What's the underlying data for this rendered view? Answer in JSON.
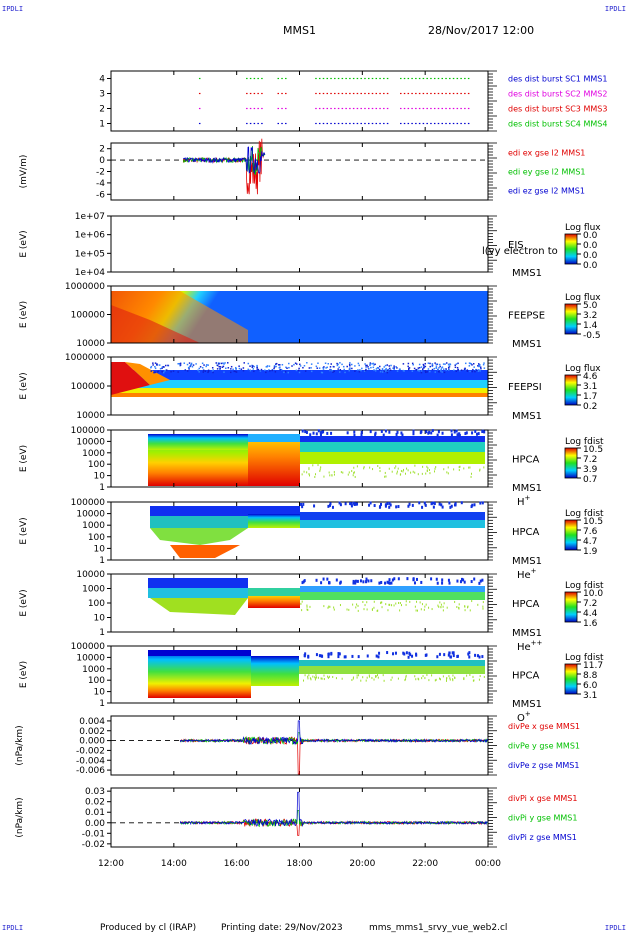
{
  "header": {
    "corner_tl": "IPDLI",
    "corner_tr": "IPDLI",
    "corner_bl": "IPDLI",
    "corner_br": "IPDLI",
    "mission": "MMS1",
    "datetime": "28/Nov/2017 12:00"
  },
  "footer": {
    "produced_by": "Produced by cl (IRAP)",
    "printing_date": "Printing date: 29/Nov/2023",
    "filename": "mms_mms1_srvy_vue_web2.cl"
  },
  "colors": {
    "red": "#e00000",
    "green": "#00c000",
    "blue": "#0000d0",
    "magenta": "#e000e0",
    "axis": "#000000"
  },
  "chart_data": [
    {
      "id": "panel1",
      "type": "scatter",
      "ylim": [
        0.5,
        4.5
      ],
      "yticks": [
        "1",
        "2",
        "3",
        "4"
      ],
      "legend": [
        "des dist burst SC1 MMS1",
        "des dist burst SC2 MMS2",
        "des dist burst SC3 MMS3",
        "des dist burst SC4 MMS4"
      ],
      "legend_colors": [
        "#0000d0",
        "#e000e0",
        "#e00000",
        "#00c000"
      ],
      "series": [
        {
          "name": "des dist burst SC1 MMS1",
          "level": 1,
          "segments": [
            [
              14.8,
              14.85
            ],
            [
              16.3,
              16.9
            ],
            [
              17.3,
              17.6
            ],
            [
              18.5,
              20.9
            ],
            [
              21.2,
              23.4
            ]
          ]
        },
        {
          "name": "des dist burst SC2 MMS2",
          "level": 2,
          "segments": [
            [
              14.8,
              14.85
            ],
            [
              16.3,
              16.9
            ],
            [
              17.3,
              17.6
            ],
            [
              18.5,
              20.9
            ],
            [
              21.2,
              23.4
            ]
          ]
        },
        {
          "name": "des dist burst SC3 MMS3",
          "level": 3,
          "segments": [
            [
              14.8,
              14.85
            ],
            [
              16.3,
              16.9
            ],
            [
              17.3,
              17.6
            ],
            [
              18.5,
              20.9
            ],
            [
              21.2,
              23.4
            ]
          ]
        },
        {
          "name": "des dist burst SC4 MMS4",
          "level": 4,
          "segments": [
            [
              14.8,
              14.85
            ],
            [
              16.3,
              16.9
            ],
            [
              17.3,
              17.6
            ],
            [
              18.5,
              20.9
            ],
            [
              21.2,
              23.4
            ]
          ]
        }
      ]
    },
    {
      "id": "panel2",
      "type": "line",
      "ylabel": "(mV/m)",
      "ylim": [
        -7,
        3
      ],
      "yticks": [
        "2",
        "0",
        "-2",
        "-4",
        "-6"
      ],
      "ytick_values": [
        2,
        0,
        -2,
        -4,
        -6
      ],
      "legend": [
        "edi ex gse l2 MMS1",
        "edi ey gse l2 MMS1",
        "edi ez gse l2 MMS1"
      ],
      "legend_colors": [
        "#e00000",
        "#00c000",
        "#0000d0"
      ],
      "data_range": [
        14.3,
        16.9
      ]
    },
    {
      "id": "panel3",
      "type": "heatmap",
      "ylabel": "E (eV)",
      "yticks": [
        "1e+07",
        "1e+06",
        "1e+05",
        "1e+04"
      ],
      "label_main": "EIS",
      "label_sub": "MMS1",
      "label_overlap": "l(vy electron to",
      "colorbar_title": "Log flux",
      "colorbar_ticks": [
        "0.0",
        "0.0",
        "0.0",
        "0.0"
      ]
    },
    {
      "id": "panel4",
      "type": "heatmap",
      "ylabel": "E (eV)",
      "yticks": [
        "1000000",
        "100000",
        "10000"
      ],
      "label_main": "FEEPSE",
      "label_sub": "MMS1",
      "colorbar_title": "Log flux",
      "colorbar_ticks": [
        "5.0",
        "3.2",
        "1.4",
        "-0.5"
      ]
    },
    {
      "id": "panel5",
      "type": "heatmap",
      "ylabel": "E (eV)",
      "yticks": [
        "1000000",
        "100000",
        "10000"
      ],
      "label_main": "FEEPSI",
      "label_sub": "MMS1",
      "colorbar_title": "Log flux",
      "colorbar_ticks": [
        "4.6",
        "3.1",
        "1.7",
        "0.2"
      ]
    },
    {
      "id": "panel6",
      "type": "heatmap",
      "ylabel": "E (eV)",
      "yticks": [
        "100000",
        "10000",
        "1000",
        "100",
        "10",
        "1"
      ],
      "label_main": "HPCA",
      "label_sub": "MMS1",
      "species": "H",
      "species_sup": "+",
      "colorbar_title": "Log fdist",
      "colorbar_ticks": [
        "10.5",
        "7.2",
        "3.9",
        "0.7"
      ]
    },
    {
      "id": "panel7",
      "type": "heatmap",
      "ylabel": "E (eV)",
      "yticks": [
        "100000",
        "10000",
        "1000",
        "100",
        "10",
        "1"
      ],
      "label_main": "HPCA",
      "label_sub": "MMS1",
      "species": "He",
      "species_sup": "+",
      "colorbar_title": "Log fdist",
      "colorbar_ticks": [
        "10.5",
        "7.6",
        "4.7",
        "1.9"
      ]
    },
    {
      "id": "panel8",
      "type": "heatmap",
      "ylabel": "E (eV)",
      "yticks": [
        "10000",
        "1000",
        "100",
        "10",
        "1"
      ],
      "label_main": "HPCA",
      "label_sub": "MMS1",
      "species": "He",
      "species_sup": "++",
      "colorbar_title": "Log fdist",
      "colorbar_ticks": [
        "10.0",
        "7.2",
        "4.4",
        "1.6"
      ]
    },
    {
      "id": "panel9",
      "type": "heatmap",
      "ylabel": "E (eV)",
      "yticks": [
        "100000",
        "10000",
        "1000",
        "100",
        "10",
        "1"
      ],
      "label_main": "HPCA",
      "label_sub": "MMS1",
      "species": "O",
      "species_sup": "+",
      "colorbar_title": "Log fdist",
      "colorbar_ticks": [
        "11.7",
        "8.8",
        "6.0",
        "3.1"
      ]
    },
    {
      "id": "panel10",
      "type": "line",
      "ylabel": "(nPa/km)",
      "ylim": [
        -0.007,
        0.005
      ],
      "yticks": [
        "0.004",
        "0.002",
        "0.000",
        "-0.002",
        "-0.004",
        "-0.006"
      ],
      "ytick_values": [
        0.004,
        0.002,
        0.0,
        -0.002,
        -0.004,
        -0.006
      ],
      "legend": [
        "divPe x gse MMS1",
        "divPe y gse MMS1",
        "divPe z gse MMS1"
      ],
      "legend_colors": [
        "#e00000",
        "#00c000",
        "#0000d0"
      ]
    },
    {
      "id": "panel11",
      "type": "line",
      "ylabel": "(nPa/km)",
      "ylim": [
        -0.023,
        0.033
      ],
      "yticks": [
        "0.03",
        "0.02",
        "0.01",
        "0.00",
        "-0.01",
        "-0.02"
      ],
      "ytick_values": [
        0.03,
        0.02,
        0.01,
        0.0,
        -0.01,
        -0.02
      ],
      "legend": [
        "divPi x gse MMS1",
        "divPi y gse MMS1",
        "divPi z gse MMS1"
      ],
      "legend_colors": [
        "#e00000",
        "#00c000",
        "#0000d0"
      ]
    }
  ],
  "xaxis": {
    "ticks": [
      "12:00",
      "14:00",
      "16:00",
      "18:00",
      "20:00",
      "22:00",
      "00:00"
    ],
    "tick_hours": [
      12,
      14,
      16,
      18,
      20,
      22,
      24
    ],
    "xlim": [
      12,
      24
    ]
  }
}
